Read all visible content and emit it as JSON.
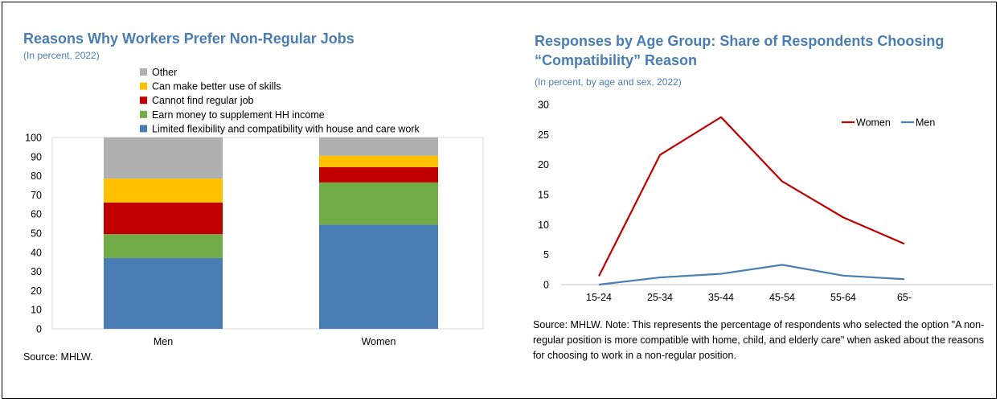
{
  "page": {
    "source_note": "Source: MHLW."
  },
  "colors": {
    "title": "#4a7db3",
    "flex": "#4a7db3",
    "earn": "#70ad47",
    "cannot": "#c00000",
    "skills": "#ffc000",
    "other": "#b0b0b0",
    "women": "#c00000",
    "men": "#4a7db3"
  },
  "left_chart": {
    "title": "Reasons Why Workers Prefer Non-Regular Jobs",
    "subtitle": "(In percent, 2022)",
    "source": "Source: MHLW."
  },
  "right_chart": {
    "title_line1": "Responses by Age Group: Share of Respondents Choosing",
    "title_line2": "“Compatibility” Reason",
    "subtitle": "(In percent, by age and sex, 2022)",
    "source": "Source: MHLW. Note: This represents the percentage of respondents who selected the option \"A non-regular position is more compatible with home, child, and elderly care\" when asked about the reasons for choosing to work in a non-regular position."
  },
  "chart_data": [
    {
      "type": "bar",
      "stacked": true,
      "title": "Reasons Why Workers Prefer Non-Regular Jobs",
      "subtitle": "(In percent, 2022)",
      "categories": [
        "Men",
        "Women"
      ],
      "series": [
        {
          "name": "Limited flexibility and compatibility with house and care work",
          "color": "#4a7db3",
          "values": [
            37,
            54.5
          ]
        },
        {
          "name": "Earn money to supplement HH income",
          "color": "#70ad47",
          "values": [
            12.5,
            22
          ]
        },
        {
          "name": "Cannot find regular job",
          "color": "#c00000",
          "values": [
            16.5,
            8
          ]
        },
        {
          "name": "Can make better use of skills",
          "color": "#ffc000",
          "values": [
            12.5,
            6
          ]
        },
        {
          "name": "Other",
          "color": "#b0b0b0",
          "values": [
            21.5,
            9.5
          ]
        }
      ],
      "ylim": [
        0,
        100
      ],
      "yticks": [
        "0",
        "10",
        "20",
        "30",
        "40",
        "50",
        "60",
        "70",
        "80",
        "90",
        "100"
      ],
      "legend_position": "top",
      "grid": false
    },
    {
      "type": "line",
      "title": "Responses by Age Group: Share of Respondents Choosing “Compatibility” Reason",
      "subtitle": "(In percent, by age and sex, 2022)",
      "categories": [
        "15-24",
        "25-34",
        "35-44",
        "45-54",
        "55-64",
        "65-"
      ],
      "series": [
        {
          "name": "Women",
          "color": "#c00000",
          "values": [
            1.4,
            21.6,
            27.9,
            17.2,
            11.2,
            6.8
          ]
        },
        {
          "name": "Men",
          "color": "#4a7db3",
          "values": [
            0.0,
            1.2,
            1.8,
            3.3,
            1.5,
            0.9
          ]
        }
      ],
      "ylim": [
        0,
        30
      ],
      "yticks": [
        "0",
        "5",
        "10",
        "15",
        "20",
        "25",
        "30"
      ],
      "legend_position": "top-right",
      "grid": false
    }
  ]
}
